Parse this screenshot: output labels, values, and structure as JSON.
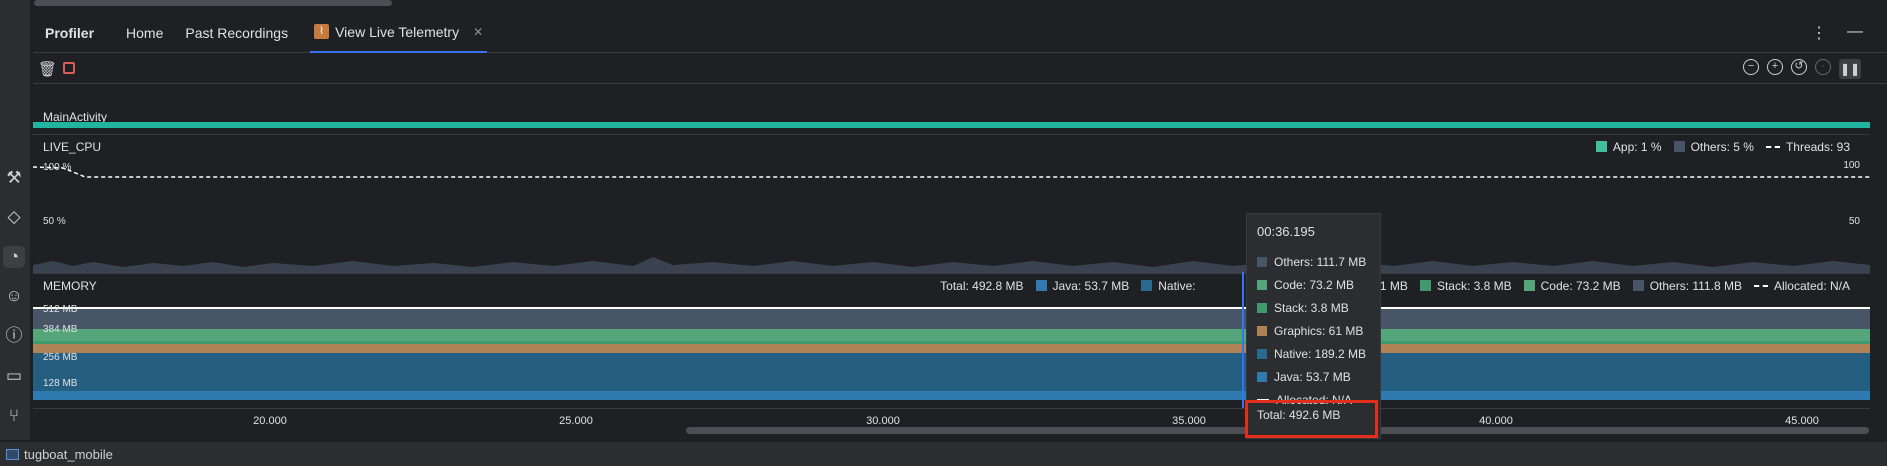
{
  "tabbar": {
    "title": "Profiler",
    "tabs": [
      "Home",
      "Past Recordings",
      "View Live Telemetry"
    ],
    "more_icon": "more-vertical-icon",
    "minimize_icon": "minimize-icon"
  },
  "activity": {
    "label": "MainActivity"
  },
  "cpu": {
    "title": "LIVE_CPU",
    "legend": {
      "app": "App: 1 %",
      "others": "Others: 5 %",
      "threads": "Threads: 93"
    },
    "y_left": [
      "100 %",
      "50 %"
    ],
    "y_right": [
      "100",
      "50"
    ]
  },
  "memory": {
    "title": "MEMORY",
    "legend": {
      "total": "Total: 492.8 MB",
      "java": "Java: 53.7 MB",
      "native": "Native:",
      "graphics": "61 MB",
      "stack": "Stack: 3.8 MB",
      "code": "Code: 73.2 MB",
      "others": "Others: 111.8 MB",
      "allocated": "Allocated: N/A"
    },
    "y_labels": [
      "512 MB",
      "384 MB",
      "256 MB",
      "128 MB"
    ]
  },
  "time_axis": [
    "20.000",
    "25.000",
    "30.000",
    "35.000",
    "40.000",
    "45.000"
  ],
  "tooltip": {
    "time": "00:36.195",
    "rows": [
      "Others: 111.7 MB",
      "Code: 73.2 MB",
      "Stack: 3.8 MB",
      "Graphics: 61 MB",
      "Native: 189.2 MB",
      "Java: 53.7 MB",
      "Allocated: N/A"
    ],
    "total": "Total: 492.6 MB"
  },
  "status": {
    "project": "tugboat_mobile"
  },
  "colors": {
    "app": "#3fbf9c",
    "others": "#485567",
    "code": "#54a57a",
    "stack": "#3f9a6f",
    "graphics": "#b08356",
    "native": "#2a6a8f",
    "java": "#2f7bb0",
    "activity": "#21b5a0",
    "highlight": "#e22e1b"
  }
}
